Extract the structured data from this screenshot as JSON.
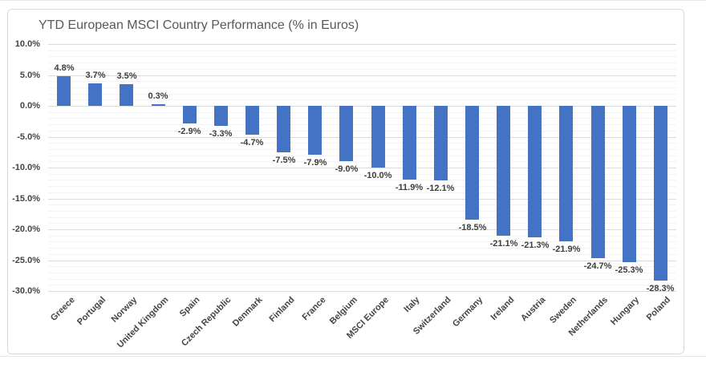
{
  "page": {
    "background": "#ffffff"
  },
  "chart_data": {
    "type": "bar",
    "title": "YTD European MSCI Country Performance (% in Euros)",
    "categories": [
      "Greece",
      "Portugal",
      "Norway",
      "United Kingdom",
      "Spain",
      "Czech Republic",
      "Denmark",
      "Finland",
      "France",
      "Belgium",
      "MSCI Europe",
      "Italy",
      "Switzerland",
      "Germany",
      "Ireland",
      "Austria",
      "Sweden",
      "Netherlands",
      "Hungary",
      "Poland"
    ],
    "values": [
      4.8,
      3.7,
      3.5,
      0.3,
      -2.9,
      -3.3,
      -4.7,
      -7.5,
      -7.9,
      -9.0,
      -10.0,
      -11.9,
      -12.1,
      -18.5,
      -21.1,
      -21.3,
      -21.9,
      -24.7,
      -25.3,
      -28.3
    ],
    "value_labels": [
      "4.8%",
      "3.7%",
      "3.5%",
      "0.3%",
      "-2.9%",
      "-3.3%",
      "-4.7%",
      "-7.5%",
      "-7.9%",
      "-9.0%",
      "-10.0%",
      "-11.9%",
      "-12.1%",
      "-18.5%",
      "-21.1%",
      "-21.3%",
      "-21.9%",
      "-24.7%",
      "-25.3%",
      "-28.3%"
    ],
    "xlabel": "",
    "ylabel": "",
    "ylim": [
      -30,
      10
    ],
    "ytick_step_pct": 5,
    "minor_grid_step_pct": 1,
    "ytick_labels": [
      "10.0%",
      "5.0%",
      "0.0%",
      "-5.0%",
      "-10.0%",
      "-15.0%",
      "-20.0%",
      "-25.0%",
      "-30.0%"
    ],
    "grid": "on",
    "legend": "none",
    "colors": {
      "bar": "#4472C4",
      "grid_major": "#DADADA",
      "grid_minor": "#F3F3F3",
      "title": "#595959",
      "tick_label": "#444444",
      "value_label": "#3D3D3D",
      "frame_border": "#D9D9D9"
    }
  }
}
